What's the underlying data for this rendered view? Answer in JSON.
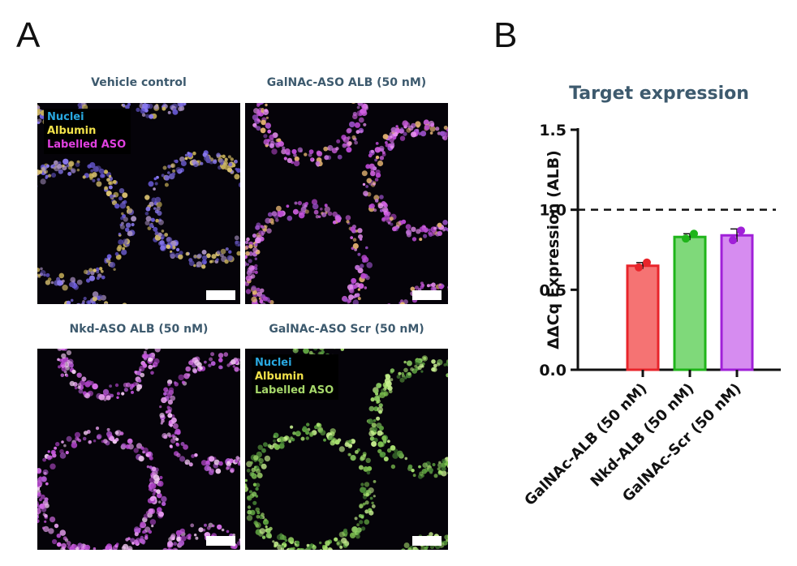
{
  "panel_labels": {
    "a": "A",
    "b": "B"
  },
  "panel_a": {
    "images": [
      {
        "title": "Vehicle control",
        "legend": [
          {
            "text": "Nuclei",
            "color": "#29a8e0"
          },
          {
            "text": "Albumin",
            "color": "#f2e24a"
          },
          {
            "text": "Labelled ASO",
            "color": "#e040e0"
          }
        ]
      },
      {
        "title": "GalNAc-ASO ALB (50 nM)",
        "legend": []
      },
      {
        "title": "Nkd-ASO ALB (50 nM)",
        "legend": []
      },
      {
        "title": "GalNAc-ASO Scr (50 nM)",
        "legend": [
          {
            "text": "Nuclei",
            "color": "#29a8e0"
          },
          {
            "text": "Albumin",
            "color": "#f2e24a"
          },
          {
            "text": "Labelled ASO",
            "color": "#a6d86a"
          }
        ]
      }
    ]
  },
  "chart_data": {
    "type": "bar",
    "title": "Target expression",
    "xlabel": "",
    "ylabel": "ΔΔCq Expression (ALB)",
    "categories": [
      "GalNAc-ALB (50 nM)",
      "Nkd-ALB (50 nM)",
      "GalNAc-Scr (50 nM)"
    ],
    "values": [
      0.65,
      0.83,
      0.84
    ],
    "points": [
      [
        0.64,
        0.67
      ],
      [
        0.82,
        0.85
      ],
      [
        0.81,
        0.87
      ]
    ],
    "error": [
      0.02,
      0.02,
      0.04
    ],
    "colors": {
      "fill": [
        "#f57373",
        "#7fd97a",
        "#d68cf0"
      ],
      "stroke": [
        "#e8252b",
        "#1fb51a",
        "#a020d8"
      ]
    },
    "ylim": [
      0,
      1.5
    ],
    "yticks": [
      "0.0",
      "0.5",
      "1.0",
      "1.5"
    ],
    "reference_line": 1.0,
    "grid": false
  }
}
